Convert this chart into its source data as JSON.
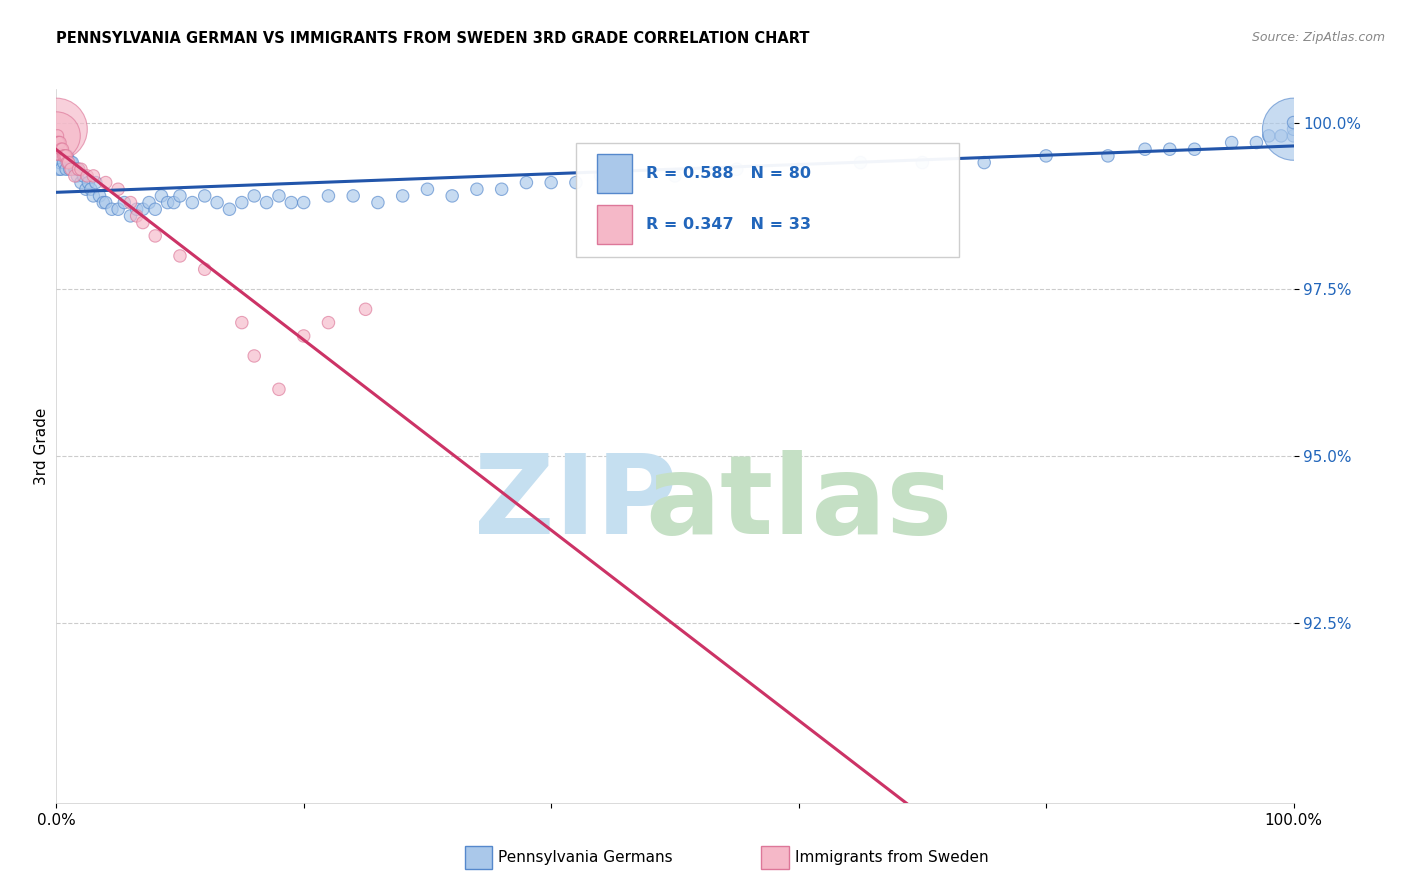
{
  "title": "PENNSYLVANIA GERMAN VS IMMIGRANTS FROM SWEDEN 3RD GRADE CORRELATION CHART",
  "source": "Source: ZipAtlas.com",
  "ylabel": "3rd Grade",
  "blue_R": 0.588,
  "blue_N": 80,
  "pink_R": 0.347,
  "pink_N": 33,
  "blue_color": "#aac8ea",
  "blue_edge_color": "#5588cc",
  "blue_line_color": "#2255aa",
  "pink_color": "#f5b8c8",
  "pink_edge_color": "#dd7799",
  "pink_line_color": "#cc3366",
  "legend_labels": [
    "Pennsylvania Germans",
    "Immigrants from Sweden"
  ],
  "xlim": [
    0.0,
    1.0
  ],
  "ylim": [
    0.898,
    1.005
  ],
  "yticks": [
    0.925,
    0.95,
    0.975,
    1.0
  ],
  "ytick_labels": [
    "92.5%",
    "95.0%",
    "97.5%",
    "100.0%"
  ],
  "grid_color": "#cccccc",
  "watermark_zip_color": "#c5dff0",
  "watermark_atlas_color": "#c5e0c5",
  "blue_x": [
    0.002,
    0.003,
    0.004,
    0.005,
    0.006,
    0.007,
    0.008,
    0.009,
    0.01,
    0.011,
    0.012,
    0.013,
    0.015,
    0.016,
    0.017,
    0.018,
    0.02,
    0.022,
    0.024,
    0.026,
    0.028,
    0.03,
    0.032,
    0.035,
    0.038,
    0.04,
    0.045,
    0.05,
    0.055,
    0.06,
    0.065,
    0.07,
    0.075,
    0.08,
    0.085,
    0.09,
    0.095,
    0.1,
    0.11,
    0.12,
    0.13,
    0.14,
    0.15,
    0.16,
    0.17,
    0.18,
    0.19,
    0.2,
    0.22,
    0.24,
    0.26,
    0.28,
    0.3,
    0.32,
    0.34,
    0.36,
    0.38,
    0.4,
    0.42,
    0.44,
    0.46,
    0.5,
    0.55,
    0.6,
    0.65,
    0.7,
    0.75,
    0.8,
    0.85,
    0.88,
    0.9,
    0.92,
    0.95,
    0.97,
    0.98,
    0.99,
    1.0,
    1.0,
    1.0,
    1.0
  ],
  "blue_y": [
    0.993,
    0.994,
    0.993,
    0.995,
    0.994,
    0.995,
    0.993,
    0.995,
    0.994,
    0.993,
    0.994,
    0.994,
    0.993,
    0.993,
    0.992,
    0.993,
    0.991,
    0.992,
    0.99,
    0.991,
    0.99,
    0.989,
    0.991,
    0.989,
    0.988,
    0.988,
    0.987,
    0.987,
    0.988,
    0.986,
    0.987,
    0.987,
    0.988,
    0.987,
    0.989,
    0.988,
    0.988,
    0.989,
    0.988,
    0.989,
    0.988,
    0.987,
    0.988,
    0.989,
    0.988,
    0.989,
    0.988,
    0.988,
    0.989,
    0.989,
    0.988,
    0.989,
    0.99,
    0.989,
    0.99,
    0.99,
    0.991,
    0.991,
    0.991,
    0.992,
    0.992,
    0.992,
    0.993,
    0.993,
    0.994,
    0.994,
    0.994,
    0.995,
    0.995,
    0.996,
    0.996,
    0.996,
    0.997,
    0.997,
    0.998,
    0.998,
    0.998,
    0.999,
    0.999,
    1.0
  ],
  "blue_sizes": [
    80,
    80,
    80,
    80,
    80,
    80,
    80,
    80,
    80,
    80,
    80,
    80,
    80,
    80,
    80,
    80,
    80,
    80,
    80,
    80,
    80,
    80,
    80,
    80,
    80,
    80,
    80,
    80,
    80,
    80,
    80,
    80,
    80,
    80,
    80,
    80,
    80,
    80,
    80,
    80,
    80,
    80,
    80,
    80,
    80,
    80,
    80,
    80,
    80,
    80,
    80,
    80,
    80,
    80,
    80,
    80,
    80,
    80,
    80,
    80,
    80,
    80,
    80,
    80,
    80,
    80,
    80,
    80,
    80,
    80,
    80,
    80,
    80,
    80,
    80,
    80,
    80,
    80,
    2000,
    80
  ],
  "pink_x": [
    0.0,
    0.0,
    0.001,
    0.001,
    0.002,
    0.003,
    0.004,
    0.005,
    0.006,
    0.007,
    0.008,
    0.009,
    0.01,
    0.012,
    0.015,
    0.018,
    0.02,
    0.025,
    0.03,
    0.04,
    0.05,
    0.06,
    0.065,
    0.07,
    0.08,
    0.1,
    0.12,
    0.15,
    0.16,
    0.18,
    0.2,
    0.22,
    0.25
  ],
  "pink_y": [
    0.999,
    0.998,
    0.998,
    0.997,
    0.997,
    0.997,
    0.996,
    0.996,
    0.995,
    0.995,
    0.995,
    0.994,
    0.994,
    0.993,
    0.992,
    0.993,
    0.993,
    0.992,
    0.992,
    0.991,
    0.99,
    0.988,
    0.986,
    0.985,
    0.983,
    0.98,
    0.978,
    0.97,
    0.965,
    0.96,
    0.968,
    0.97,
    0.972
  ],
  "pink_sizes": [
    2000,
    1200,
    80,
    80,
    80,
    80,
    80,
    80,
    80,
    80,
    80,
    80,
    80,
    80,
    80,
    80,
    80,
    80,
    80,
    80,
    80,
    80,
    80,
    80,
    80,
    80,
    80,
    80,
    80,
    80,
    80,
    80,
    80
  ]
}
